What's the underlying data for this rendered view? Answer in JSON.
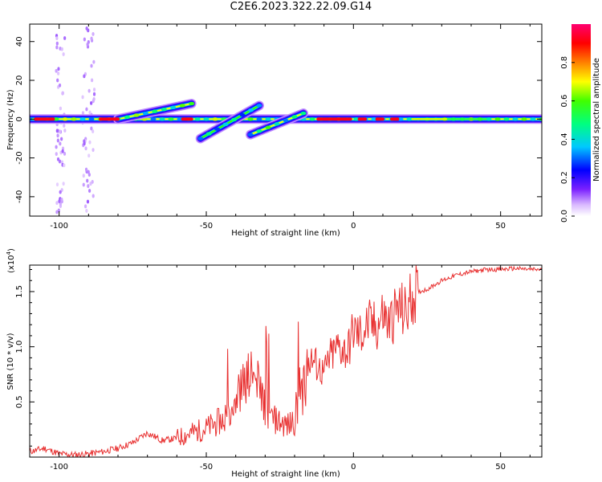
{
  "page_title": "C2E6.2023.322.22.09.G14",
  "chart_data": [
    {
      "type": "heatmap",
      "title": "C2E6.2023.322.22.09.G14",
      "xlabel": "Height of straight line (km)",
      "ylabel": "Frequency (Hz)",
      "xlim": [
        -110,
        64
      ],
      "ylim": [
        -50,
        49
      ],
      "x_ticks": [
        -100,
        -50,
        0,
        50
      ],
      "x_tick_labels": [
        "-100",
        "-50",
        "0",
        "50"
      ],
      "y_ticks": [
        -40,
        -20,
        0,
        20,
        40
      ],
      "y_tick_labels": [
        "-40",
        "-20",
        "0",
        "20",
        "40"
      ],
      "colorbar": {
        "label": "Normalized spectral amplitude",
        "range": [
          0,
          1
        ],
        "ticks": [
          0.0,
          0.2,
          0.4,
          0.6,
          0.8
        ],
        "tick_labels": [
          "0.0",
          "0.2",
          "0.4",
          "0.6",
          "0.8"
        ]
      },
      "features": [
        {
          "name": "main carrier band",
          "x_start": -110,
          "x_end": 64,
          "frequency": 0,
          "amplitude": 0.5
        },
        {
          "name": "upper tilted trace",
          "x_start": -80,
          "x_end": -55,
          "frequency_start": 0,
          "frequency_end": 8,
          "amplitude": 0.5
        },
        {
          "name": "lower tilted trace",
          "x_start": -52,
          "x_end": -32,
          "frequency_start": -10,
          "frequency_end": 7,
          "amplitude": 0.4
        },
        {
          "name": "rising trace",
          "x_start": -35,
          "x_end": -17,
          "frequency_start": -8,
          "frequency_end": 3,
          "amplitude": 0.5
        }
      ]
    },
    {
      "type": "line",
      "xlabel": "Height of straight line (km)",
      "ylabel": "SNR (10 * v/v)",
      "y_scale_note": "(x10",
      "y_scale_exponent": "4",
      "xlim": [
        -110,
        64
      ],
      "ylim": [
        0,
        1.74
      ],
      "x_ticks": [
        -100,
        -50,
        0,
        50
      ],
      "x_tick_labels": [
        "-100",
        "-50",
        "0",
        "50"
      ],
      "y_ticks": [
        0.5,
        1.0,
        1.5
      ],
      "y_tick_labels": [
        "0.5",
        "1.0",
        "1.5"
      ],
      "series": [
        {
          "color": "#e83030",
          "x": [
            -110,
            -105,
            -100,
            -95,
            -90,
            -85,
            -80,
            -75,
            -70,
            -65,
            -60,
            -55,
            -50,
            -45,
            -42,
            -40,
            -38,
            -35,
            -32,
            -30,
            -28,
            -25,
            -22,
            -20,
            -18,
            -15,
            -12,
            -10,
            -8,
            -5,
            -2,
            0,
            2,
            5,
            8,
            10,
            12,
            15,
            18,
            20,
            25,
            30,
            35,
            40,
            45,
            50,
            55,
            60,
            64
          ],
          "y": [
            0.05,
            0.08,
            0.03,
            0.02,
            0.03,
            0.05,
            0.08,
            0.13,
            0.22,
            0.15,
            0.17,
            0.22,
            0.26,
            0.33,
            0.45,
            0.55,
            0.62,
            0.75,
            0.65,
            0.45,
            0.35,
            0.32,
            0.28,
            0.35,
            0.6,
            0.9,
            0.82,
            0.75,
            0.9,
            1.0,
            0.95,
            1.15,
            1.1,
            1.2,
            1.18,
            1.3,
            1.2,
            1.35,
            1.3,
            1.48,
            1.52,
            1.6,
            1.65,
            1.68,
            1.7,
            1.7,
            1.71,
            1.7,
            1.7
          ]
        }
      ]
    }
  ]
}
